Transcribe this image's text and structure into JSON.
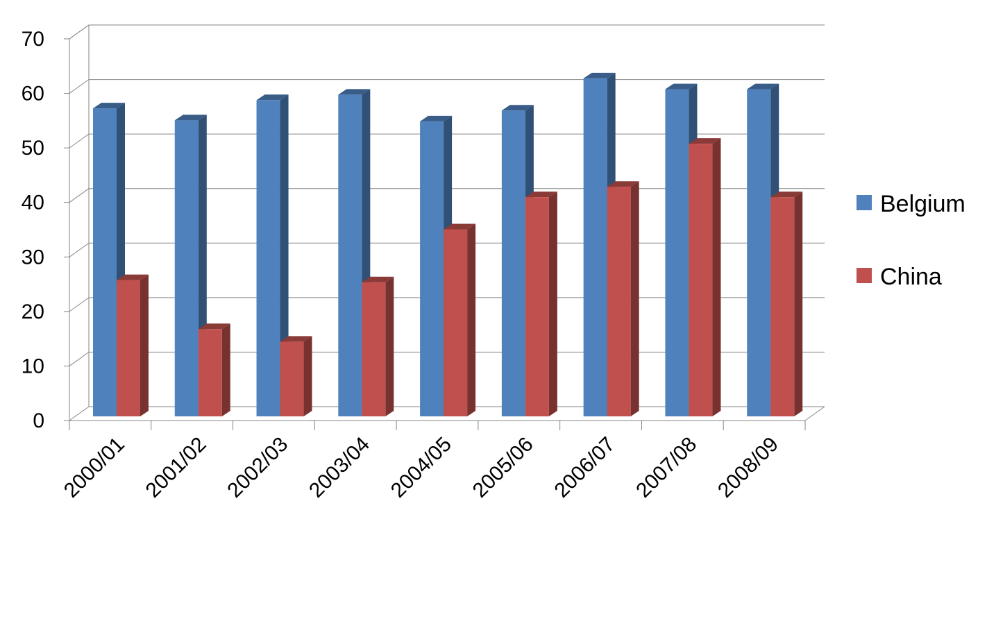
{
  "chart_data": {
    "type": "bar",
    "title": "",
    "xlabel": "",
    "ylabel": "",
    "ylim": [
      0,
      70
    ],
    "yticks": [
      0,
      10,
      20,
      30,
      40,
      50,
      60,
      70
    ],
    "grid": true,
    "legend": "right",
    "categories": [
      "2000/01",
      "2001/02",
      "2002/03",
      "2003/04",
      "2004/05",
      "2005/06",
      "2006/07",
      "2007/08",
      "2008/09"
    ],
    "series": [
      {
        "name": "Belgium",
        "color": "#4F81BD",
        "values": [
          56.5,
          54.3,
          58.0,
          59.0,
          54.1,
          56.1,
          62.0,
          60.0,
          60.0
        ]
      },
      {
        "name": "China",
        "color": "#C0504D",
        "values": [
          25.0,
          16.0,
          13.7,
          24.6,
          34.3,
          40.2,
          42.1,
          50.0,
          40.2
        ]
      }
    ]
  }
}
